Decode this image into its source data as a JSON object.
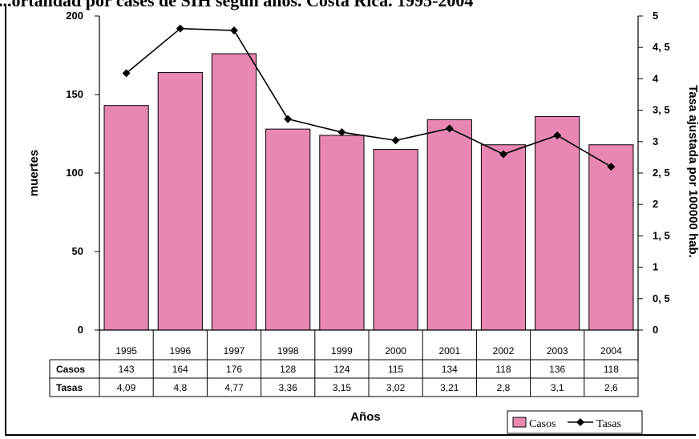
{
  "title": "...ortalidad por cases de SIH según años. Costa Rica. 1995-2004",
  "chart_data": {
    "type": "bar",
    "categories": [
      "1995",
      "1996",
      "1997",
      "1998",
      "1999",
      "2000",
      "2001",
      "2002",
      "2003",
      "2004"
    ],
    "series": [
      {
        "name": "Casos",
        "type": "bar",
        "axis": "left",
        "values": [
          143,
          164,
          176,
          128,
          124,
          115,
          134,
          118,
          136,
          118
        ],
        "color": "#e787b2"
      },
      {
        "name": "Tasas",
        "type": "line",
        "axis": "right",
        "values": [
          4.09,
          4.8,
          4.77,
          3.36,
          3.15,
          3.02,
          3.21,
          2.8,
          3.1,
          2.6
        ],
        "color": "#000000"
      }
    ],
    "ylabel": "muertes",
    "y2label": "Tasa ajustada por 100000 hab.",
    "xlabel": "Años",
    "ylim": [
      0,
      200
    ],
    "y2lim": [
      0,
      5
    ],
    "yticks": [
      "0",
      "50",
      "100",
      "150",
      "200"
    ],
    "y2ticks": [
      "0",
      "0, 5",
      "1",
      "1, 5",
      "2",
      "2, 5",
      "3",
      "3, 5",
      "4",
      "4, 5",
      "5"
    ],
    "table": {
      "rows": [
        {
          "label": "Casos",
          "values": [
            "143",
            "164",
            "176",
            "128",
            "124",
            "115",
            "134",
            "118",
            "136",
            "118"
          ]
        },
        {
          "label": "Tasas",
          "values": [
            "4,09",
            "4,8",
            "4,77",
            "3,36",
            "3,15",
            "3,02",
            "3,21",
            "2,8",
            "3,1",
            "2,6"
          ]
        }
      ]
    },
    "legend": {
      "position": "bottom-right",
      "items": [
        "Casos",
        "Tasas"
      ]
    }
  }
}
